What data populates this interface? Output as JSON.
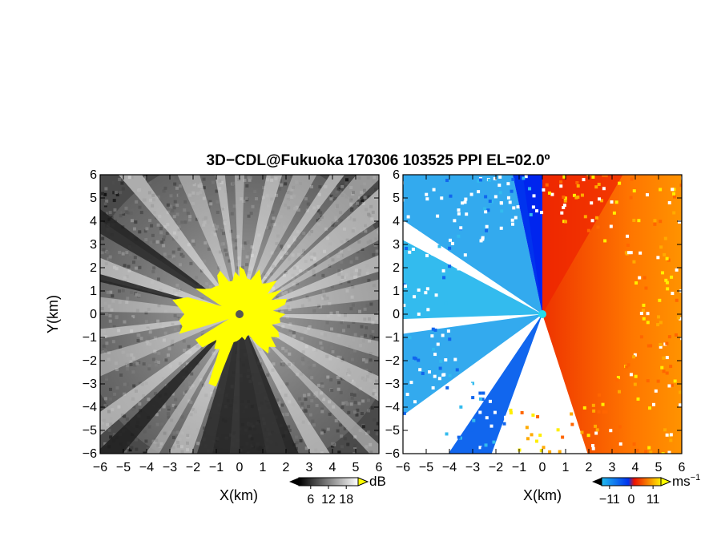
{
  "chart_data": {
    "title": "3D−CDL@Fukuoka 170306 103525 PPI EL=02.0º",
    "type": "heatmap",
    "panels": [
      {
        "quantity": "reflectivity",
        "xlabel": "X(km)",
        "ylabel": "Y(km)",
        "xlim": [
          -6,
          6
        ],
        "ylim": [
          -6,
          6
        ],
        "xticks": [
          "−6",
          "−5",
          "−4",
          "−3",
          "−2",
          "−1",
          "0",
          "1",
          "2",
          "3",
          "4",
          "5",
          "6"
        ],
        "yticks": [
          "6",
          "5",
          "4",
          "3",
          "2",
          "1",
          "0",
          "−1",
          "−2",
          "−3",
          "−4",
          "−5",
          "−6"
        ],
        "colorbar": {
          "unit": "dB",
          "ticks": [
            "6",
            "12",
            "18"
          ],
          "values": [
            6,
            12,
            18
          ],
          "range": [
            2,
            22
          ]
        },
        "colors": {
          "low": "#000000",
          "high": "#ffffff",
          "saturated": "#ffff00",
          "radar": "#555555"
        }
      },
      {
        "quantity": "doppler velocity",
        "xlabel": "X(km)",
        "xlim": [
          -6,
          6
        ],
        "ylim": [
          -6,
          6
        ],
        "xticks": [
          "−6",
          "−5",
          "−4",
          "−3",
          "−2",
          "−1",
          "0",
          "1",
          "2",
          "3",
          "4",
          "5",
          "6"
        ],
        "yticks": [
          "6",
          "5",
          "4",
          "3",
          "2",
          "1",
          "0",
          "−1",
          "−2",
          "−3",
          "−4",
          "−5",
          "−6"
        ],
        "colorbar": {
          "unit": "ms",
          "unit_exp": "−1",
          "ticks": [
            "−11",
            "0",
            "11"
          ],
          "values": [
            -11,
            0,
            11
          ],
          "range": [
            -15,
            15
          ]
        },
        "colors": {
          "neg_far": "#22bbee",
          "neg_near": "#0033ee",
          "pos_near": "#ee1100",
          "pos_far": "#ffee00",
          "radar": "#22ddee"
        }
      }
    ]
  }
}
